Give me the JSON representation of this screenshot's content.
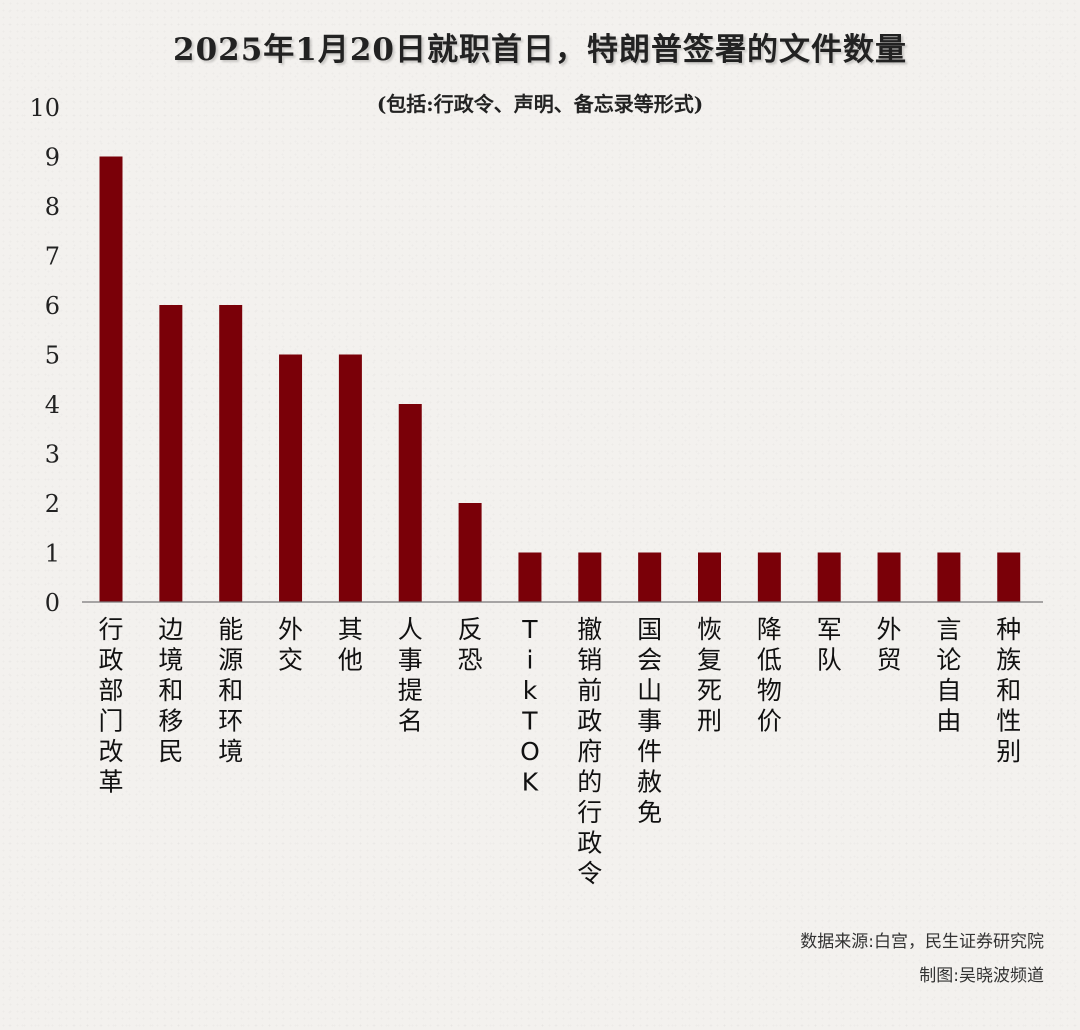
{
  "chart_data": {
    "type": "bar",
    "title": "2025年1月20日就职首日，特朗普签署的文件数量",
    "subtitle": "(包括:行政令、声明、备忘录等形式)",
    "categories": [
      "行政部门改革",
      "边境和移民",
      "能源和环境",
      "外交",
      "其他",
      "人事提名",
      "反恐",
      "TikTOK",
      "撤销前政府的行政令",
      "国会山事件赦免",
      "恢复死刑",
      "降低物价",
      "军队",
      "外贸",
      "言论自由",
      "种族和性别"
    ],
    "values": [
      9,
      6,
      6,
      5,
      5,
      4,
      2,
      1,
      1,
      1,
      1,
      1,
      1,
      1,
      1,
      1
    ],
    "ylim": [
      0,
      10
    ],
    "yticks": [
      0,
      1,
      2,
      3,
      4,
      5,
      6,
      7,
      8,
      9,
      10
    ],
    "xlabel": "",
    "ylabel": "",
    "grid": false,
    "bar_color": "#7a0008"
  },
  "source": "数据来源:白宫，民生证券研究院",
  "credit": "制图:吴晓波频道"
}
